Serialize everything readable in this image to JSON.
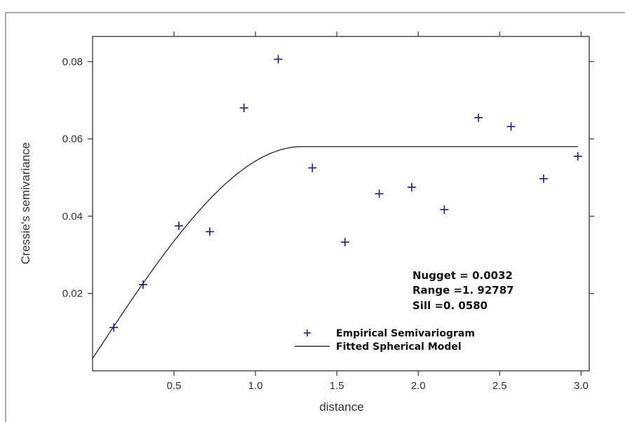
{
  "chart_data": {
    "type": "scatter",
    "xlabel": "distance",
    "ylabel": "Cressie's semivariance",
    "xlim": [
      0.0,
      3.05
    ],
    "ylim": [
      0.0,
      0.0865
    ],
    "xticks": [
      "0.5",
      "1.0",
      "1.5",
      "2.0",
      "2.5",
      "3.0"
    ],
    "yticks": [
      "0.02",
      "0.04",
      "0.06",
      "0.08"
    ],
    "grid": false,
    "legend_placement": "bottom-right",
    "series": [
      {
        "name": "Empirical Semivariogram",
        "type": "scatter",
        "marker": "plus",
        "color": "#1a1f6e",
        "x": [
          0.13,
          0.31,
          0.53,
          0.72,
          0.93,
          1.14,
          1.35,
          1.55,
          1.76,
          1.96,
          2.16,
          2.37,
          2.57,
          2.77,
          2.98
        ],
        "y": [
          0.0112,
          0.0223,
          0.0375,
          0.036,
          0.068,
          0.0806,
          0.0525,
          0.0333,
          0.0458,
          0.0475,
          0.0417,
          0.0655,
          0.0632,
          0.0497,
          0.0555
        ]
      },
      {
        "name": "Fitted Spherical Model",
        "type": "line",
        "color": "#333333",
        "model": "spherical",
        "nugget": 0.0032,
        "range": 1.92787,
        "sill": 0.058
      }
    ],
    "annotations": [
      "Nugget = 0.0032",
      "Range =1. 92787",
      "Sill =0. 0580"
    ]
  }
}
